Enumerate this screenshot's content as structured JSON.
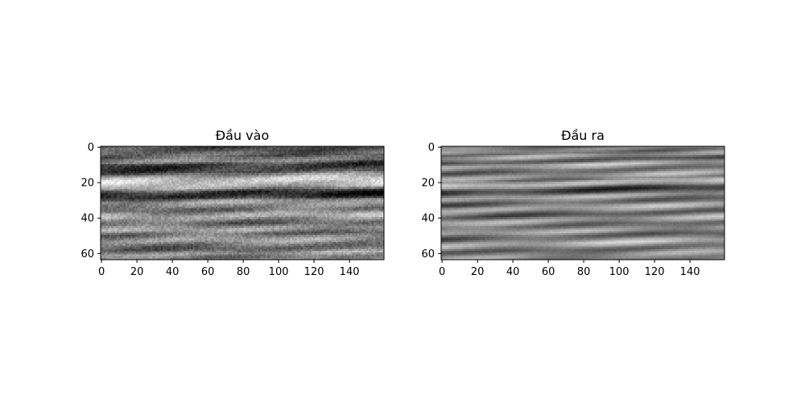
{
  "chart_data": [
    {
      "type": "heatmap",
      "title": "Đầu vào",
      "colormap": "gray",
      "shape": [
        64,
        160
      ],
      "xlim": [
        0,
        159
      ],
      "ylim": [
        63,
        0
      ],
      "x_ticks": [
        0,
        20,
        40,
        60,
        80,
        100,
        120,
        140
      ],
      "y_ticks": [
        0,
        20,
        40,
        60
      ],
      "x_tick_labels": [
        "0",
        "20",
        "40",
        "60",
        "80",
        "100",
        "120",
        "140"
      ],
      "y_tick_labels": [
        "0",
        "20",
        "40",
        "60"
      ],
      "row_means": [
        0.3,
        0.33,
        0.38,
        0.4,
        0.35,
        0.45,
        0.5,
        0.52,
        0.3,
        0.22,
        0.2,
        0.22,
        0.26,
        0.3,
        0.48,
        0.6,
        0.72,
        0.8,
        0.82,
        0.78,
        0.74,
        0.7,
        0.6,
        0.4,
        0.22,
        0.15,
        0.14,
        0.18,
        0.3,
        0.55,
        0.62,
        0.58,
        0.52,
        0.48,
        0.42,
        0.46,
        0.58,
        0.66,
        0.7,
        0.62,
        0.52,
        0.45,
        0.4,
        0.48,
        0.56,
        0.64,
        0.58,
        0.46,
        0.4,
        0.48,
        0.56,
        0.62,
        0.6,
        0.52,
        0.45,
        0.4,
        0.36,
        0.42,
        0.52,
        0.62,
        0.54,
        0.46,
        0.5,
        0.55
      ]
    },
    {
      "type": "heatmap",
      "title": "Đầu ra",
      "colormap": "gray",
      "shape": [
        64,
        160
      ],
      "xlim": [
        0,
        159
      ],
      "ylim": [
        63,
        0
      ],
      "x_ticks": [
        0,
        20,
        40,
        60,
        80,
        100,
        120,
        140
      ],
      "y_ticks": [
        0,
        20,
        40,
        60
      ],
      "x_tick_labels": [
        "0",
        "20",
        "40",
        "60",
        "80",
        "100",
        "120",
        "140"
      ],
      "y_tick_labels": [
        "0",
        "20",
        "40",
        "60"
      ],
      "row_means": [
        0.45,
        0.55,
        0.5,
        0.4,
        0.58,
        0.62,
        0.5,
        0.32,
        0.36,
        0.6,
        0.7,
        0.6,
        0.48,
        0.38,
        0.44,
        0.56,
        0.64,
        0.58,
        0.46,
        0.62,
        0.74,
        0.7,
        0.52,
        0.3,
        0.2,
        0.24,
        0.4,
        0.58,
        0.66,
        0.54,
        0.42,
        0.36,
        0.46,
        0.6,
        0.68,
        0.62,
        0.5,
        0.38,
        0.32,
        0.44,
        0.58,
        0.66,
        0.6,
        0.48,
        0.4,
        0.46,
        0.56,
        0.64,
        0.58,
        0.44,
        0.36,
        0.4,
        0.52,
        0.64,
        0.72,
        0.66,
        0.54,
        0.42,
        0.38,
        0.46,
        0.54,
        0.6,
        0.56,
        0.5
      ]
    }
  ]
}
